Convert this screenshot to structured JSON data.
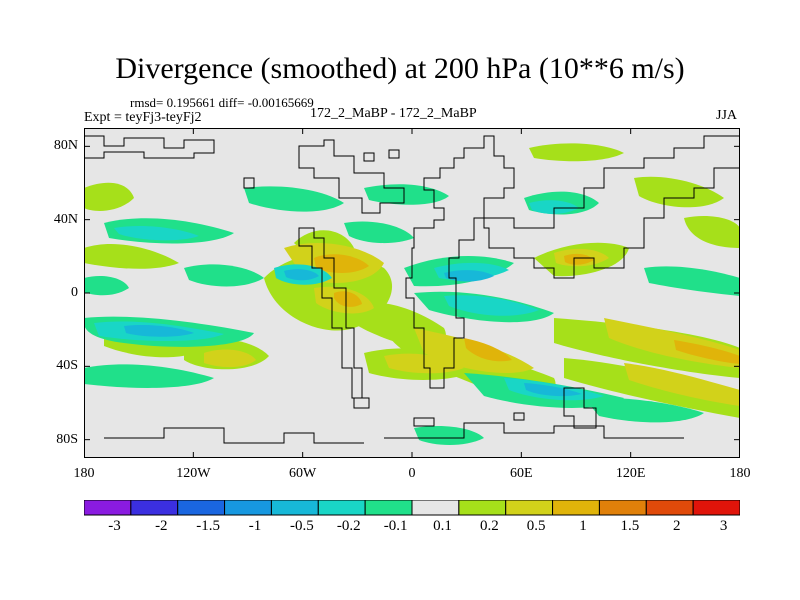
{
  "title": "Divergence (smoothed) at 200 hPa (10**6 m/s)",
  "stats_line": "rmsd= 0.195661 diff= -0.00165669",
  "experiment_line": "Expt = teyFj3-teyFj2",
  "case_line": "172_2_MaBP - 172_2_MaBP",
  "season": "JJA",
  "x_axis": {
    "tick_labels": [
      "180",
      "120W",
      "60W",
      "0",
      "60E",
      "120E",
      "180"
    ],
    "tick_values": [
      -180,
      -120,
      -60,
      0,
      60,
      120,
      180
    ],
    "range": [
      -180,
      180
    ]
  },
  "y_axis": {
    "tick_labels": [
      "80N",
      "40N",
      "0",
      "40S",
      "80S"
    ],
    "tick_values": [
      80,
      40,
      0,
      -40,
      -80
    ],
    "range": [
      -90,
      90
    ]
  },
  "colorbar": {
    "labels": [
      "-3",
      "-2",
      "-1.5",
      "-1",
      "-0.5",
      "-0.2",
      "-0.1",
      "0.1",
      "0.2",
      "0.5",
      "1",
      "1.5",
      "2",
      "3"
    ],
    "colors": [
      "#8a1be0",
      "#3b2fe0",
      "#1a66e0",
      "#1798e0",
      "#17b8d8",
      "#19d6c6",
      "#20e08a",
      "#e6e6e6",
      "#a6e01a",
      "#d2d21a",
      "#e0b40a",
      "#e0800a",
      "#e04a0a",
      "#e0140a"
    ]
  },
  "colors": {
    "background_field": "#e6e6e6",
    "coastline": "#000000"
  }
}
